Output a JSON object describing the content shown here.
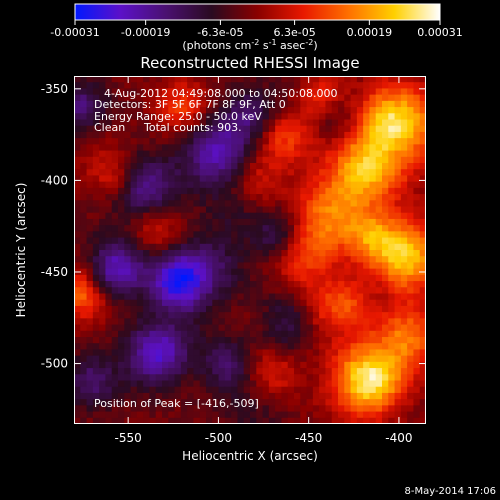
{
  "chart_data": {
    "type": "heatmap",
    "title": "Reconstructed RHESSI Image",
    "colorbar": {
      "ticks": [
        "-0.00031",
        "-0.00019",
        "-6.3e-05",
        "6.3e-05",
        "0.00019",
        "0.00031"
      ],
      "range": [
        -0.00031,
        0.00031
      ],
      "unit_prefix": "(photons cm",
      "unit_exp1": "-2",
      "unit_mid": " s",
      "unit_exp2": "-1",
      "unit_mid2": " asec",
      "unit_exp3": "-2",
      "unit_suffix": ")",
      "colors": [
        "#0018ff",
        "#5c10c8",
        "#4a1070",
        "#2a0a20",
        "#8a0000",
        "#e81800",
        "#ff7000",
        "#ffd000",
        "#ffffff"
      ]
    },
    "annotations": {
      "line1": "4-Aug-2012 04:49:08.000 to 04:50:08.000",
      "line2": "Detectors: 3F 5F 6F 7F 8F 9F, Att 0",
      "line3": "Energy Range: 25.0 - 50.0 keV",
      "line4_a": "Clean",
      "line4_b": "Total counts: 903.",
      "peak": "Position of Peak = [-416,-509]"
    },
    "xlabel": "Heliocentric X (arcsec)",
    "ylabel": "Heliocentric Y (arcsec)",
    "xlim": [
      -580,
      -385
    ],
    "ylim": [
      -533,
      -343
    ],
    "xticks": [
      {
        "value": -550,
        "label": "-550"
      },
      {
        "value": -500,
        "label": "-500"
      },
      {
        "value": -450,
        "label": "-450"
      },
      {
        "value": -400,
        "label": "-400"
      }
    ],
    "yticks": [
      {
        "value": -350,
        "label": "-350"
      },
      {
        "value": -400,
        "label": "-400"
      },
      {
        "value": -450,
        "label": "-450"
      },
      {
        "value": -500,
        "label": "-500"
      }
    ],
    "peak_position": [
      -416,
      -509
    ],
    "grid": false
  },
  "footer": {
    "date": "8-May-2014 17:06"
  }
}
